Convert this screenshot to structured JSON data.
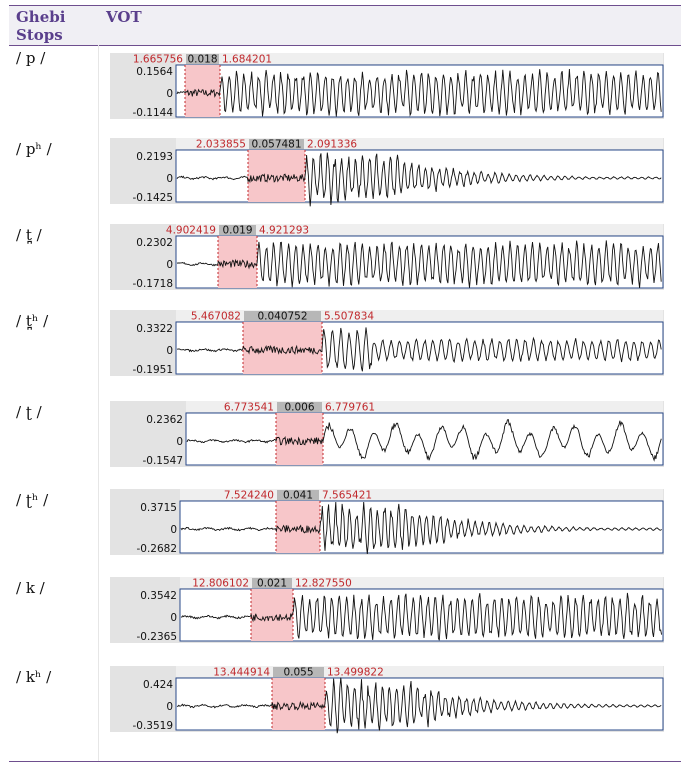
{
  "header": {
    "col1_line1": "Ghebi",
    "col1_line2": "Stops",
    "col2": "VOT"
  },
  "rows": [
    {
      "stop": "/ p /",
      "start": "1.665756",
      "dur": "0.018",
      "end": "1.684201",
      "ymax": "0.1564",
      "zero": "0",
      "ymin": "-0.1144"
    },
    {
      "stop": "/ pʰ /",
      "start": "2.033855",
      "dur": "0.057481",
      "end": "2.091336",
      "ymax": "0.2193",
      "zero": "0",
      "ymin": "-0.1425"
    },
    {
      "stop": "/ t̪ /",
      "start": "4.902419",
      "dur": "0.019",
      "end": "4.921293",
      "ymax": "0.2302",
      "zero": "0",
      "ymin": "-0.1718"
    },
    {
      "stop": "/ t̪ʰ /",
      "start": "5.467082",
      "dur": "0.040752",
      "end": "5.507834",
      "ymax": "0.3322",
      "zero": "0",
      "ymin": "-0.1951"
    },
    {
      "stop": "/ ʈ /",
      "start": "6.773541",
      "dur": "0.006",
      "end": "6.779761",
      "ymax": "0.2362",
      "zero": "0",
      "ymin": "-0.1547"
    },
    {
      "stop": "/ ʈʰ /",
      "start": "7.524240",
      "dur": "0.041",
      "end": "7.565421",
      "ymax": "0.3715",
      "zero": "0",
      "ymin": "-0.2682"
    },
    {
      "stop": "/ k /",
      "start": "12.806102",
      "dur": "0.021",
      "end": "12.827550",
      "ymax": "0.3542",
      "zero": "0",
      "ymin": "-0.2365"
    },
    {
      "stop": "/ kʰ /",
      "start": "13.444914",
      "dur": "0.055",
      "end": "13.499822",
      "ymax": "0.424",
      "zero": "0",
      "ymin": "-0.3519"
    }
  ],
  "colors": {
    "header_text": "#5a3f8c",
    "rule": "#6e4e8e",
    "selection": "#f7c6c9",
    "time_label": "#c0282c",
    "waveform": "#111111"
  }
}
